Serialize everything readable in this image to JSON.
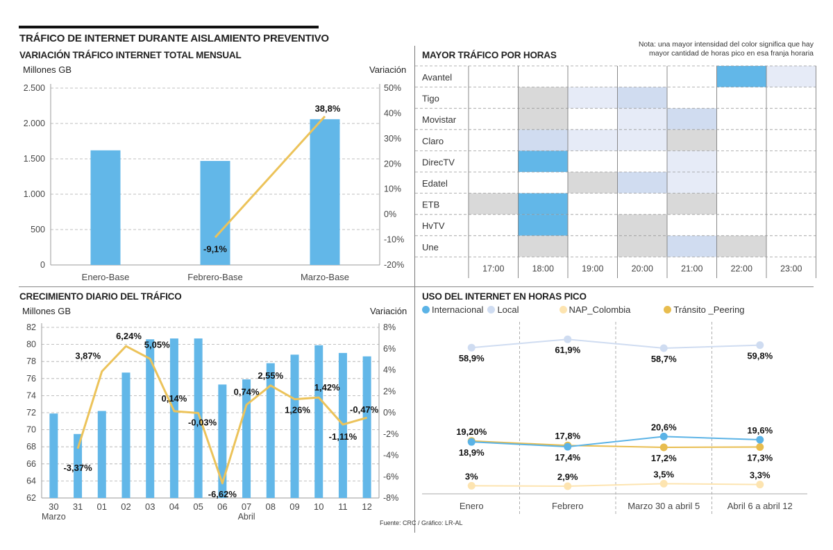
{
  "header": {
    "title": "TRÁFICO DE INTERNET DURANTE AISLAMIENTO PREVENTIVO",
    "source": "Fuente: CRC / Gráfico: LR-AL"
  },
  "colors": {
    "bar": "#62b7e8",
    "variation_line": "#ecc35a",
    "grid": "#aaaaaa",
    "heat_levels": [
      "#ffffff",
      "#d9d9d9",
      "#e6ebf7",
      "#d0dcf0",
      "#62b7e8"
    ],
    "internacional": "#5bb3e6",
    "local": "#cfdcf1",
    "nap_colombia": "#fde4b0",
    "transito_peering": "#e8bd4f"
  },
  "chart_data": [
    {
      "id": "monthly",
      "type": "bar",
      "title": "VARIACIÓN TRÁFICO INTERNET TOTAL MENSUAL",
      "ylabel": "Millones GB",
      "y2label": "Variación",
      "categories": [
        "Enero-Base",
        "Febrero-Base",
        "Marzo-Base"
      ],
      "series": [
        {
          "name": "Millones GB",
          "type": "bar",
          "values": [
            1620,
            1470,
            2060
          ]
        },
        {
          "name": "Variación",
          "type": "line",
          "axis": "right",
          "values": [
            null,
            -9.1,
            38.8
          ],
          "labels": [
            "",
            "-9,1%",
            "38,8%"
          ]
        }
      ],
      "ylim": [
        0,
        2500
      ],
      "yticks": [
        0,
        500,
        1000,
        1500,
        2000,
        2500
      ],
      "ytick_labels": [
        "0",
        "500",
        "1.000",
        "1.500",
        "2.000",
        "2.500"
      ],
      "y2lim": [
        -20,
        50
      ],
      "y2ticks": [
        -20,
        -10,
        0,
        10,
        20,
        30,
        40,
        50
      ],
      "y2tick_labels": [
        "-20%",
        "-10%",
        "0%",
        "10%",
        "20%",
        "30%",
        "40%",
        "50%"
      ],
      "grid": true
    },
    {
      "id": "daily",
      "type": "bar",
      "title": "CRECIMIENTO DIARIO DEL TRÁFICO",
      "ylabel": "Millones GB",
      "y2label": "Variación",
      "categories": [
        "30",
        "31",
        "01",
        "02",
        "03",
        "04",
        "05",
        "06",
        "07",
        "08",
        "09",
        "10",
        "11",
        "12"
      ],
      "group_labels": [
        {
          "label": "Marzo",
          "at": "30"
        },
        {
          "label": "Abril",
          "at": "07"
        }
      ],
      "series": [
        {
          "name": "Millones GB",
          "type": "bar",
          "values": [
            71.9,
            69.5,
            72.2,
            76.7,
            80.6,
            80.7,
            80.7,
            75.3,
            75.9,
            77.8,
            78.8,
            79.9,
            79.0,
            78.6
          ]
        },
        {
          "name": "Variación",
          "type": "line",
          "axis": "right",
          "values": [
            null,
            -3.37,
            3.87,
            6.24,
            5.05,
            0.14,
            -0.03,
            -6.62,
            0.74,
            2.55,
            1.26,
            1.42,
            -1.11,
            -0.47
          ],
          "labels": [
            "",
            "-3,37%",
            "3,87%",
            "6,24%",
            "5,05%",
            "0,14%",
            "-0,03%",
            "-6,62%",
            "0,74%",
            "2,55%",
            "1,26%",
            "1,42%",
            "-1,11%",
            "-0,47%"
          ]
        }
      ],
      "ylim": [
        62,
        82
      ],
      "yticks": [
        62,
        64,
        66,
        68,
        70,
        72,
        74,
        76,
        78,
        80,
        82
      ],
      "y2lim": [
        -8,
        8
      ],
      "y2ticks": [
        -8,
        -6,
        -4,
        -2,
        0,
        2,
        4,
        6,
        8
      ],
      "y2tick_labels": [
        "-8%",
        "-6%",
        "-4%",
        "-2%",
        "0%",
        "2%",
        "4%",
        "6%",
        "8%"
      ],
      "grid": true
    },
    {
      "id": "hours",
      "type": "heatmap",
      "title": "MAYOR TRÁFICO POR HORAS",
      "note_line1": "Nota: una mayor intensidad del color significa que hay",
      "note_line2": "mayor cantidad de horas pico en esa franja horaria",
      "rows": [
        "Avantel",
        "Tigo",
        "Movistar",
        "Claro",
        "DirecTV",
        "Edatel",
        "ETB",
        "HvTV",
        "Une"
      ],
      "columns": [
        "17:00",
        "18:00",
        "19:00",
        "20:00",
        "21:00",
        "22:00",
        "23:00"
      ],
      "values": [
        [
          0,
          0,
          0,
          0,
          0,
          4,
          2
        ],
        [
          0,
          1,
          2,
          3,
          0,
          0,
          0
        ],
        [
          0,
          1,
          0,
          2,
          3,
          0,
          0
        ],
        [
          0,
          3,
          2,
          2,
          1,
          0,
          0
        ],
        [
          0,
          4,
          0,
          0,
          2,
          0,
          0
        ],
        [
          0,
          0,
          1,
          3,
          2,
          0,
          0
        ],
        [
          1,
          4,
          0,
          0,
          1,
          0,
          0
        ],
        [
          0,
          4,
          0,
          1,
          0,
          0,
          0
        ],
        [
          0,
          1,
          0,
          1,
          3,
          1,
          0
        ]
      ]
    },
    {
      "id": "peak",
      "type": "line",
      "title": "USO DEL INTERNET EN HORAS PICO",
      "legend_position": "top-left",
      "categories": [
        "Enero",
        "Febrero",
        "Marzo 30 a abril 5",
        "Abril 6 a abril 12"
      ],
      "series": [
        {
          "name": "Internacional",
          "key": "internacional",
          "values": [
            18.9,
            17.4,
            20.6,
            19.6
          ],
          "labels": [
            "18,9%",
            "17,4%",
            "20,6%",
            "19,6%"
          ],
          "label_pos": [
            "below",
            "below",
            "above",
            "above"
          ]
        },
        {
          "name": "Local",
          "key": "local",
          "values": [
            58.9,
            61.9,
            58.7,
            59.8
          ],
          "labels": [
            "58,9%",
            "61,9%",
            "58,7%",
            "59,8%"
          ],
          "label_pos": [
            "below",
            "below",
            "below",
            "below"
          ]
        },
        {
          "name": "NAP_Colombia",
          "key": "nap_colombia",
          "values": [
            3.0,
            2.9,
            3.5,
            3.3
          ],
          "labels": [
            "3%",
            "2,9%",
            "3,5%",
            "3,3%"
          ],
          "label_pos": [
            "above",
            "above",
            "above",
            "above"
          ]
        },
        {
          "name": "Tránsito _Peering",
          "key": "transito_peering",
          "values": [
            19.2,
            17.8,
            17.2,
            17.3
          ],
          "labels": [
            "19,20%",
            "17,8%",
            "17,2%",
            "17,3%"
          ],
          "label_pos": [
            "above",
            "above",
            "below",
            "below"
          ]
        }
      ],
      "grid": false
    }
  ]
}
